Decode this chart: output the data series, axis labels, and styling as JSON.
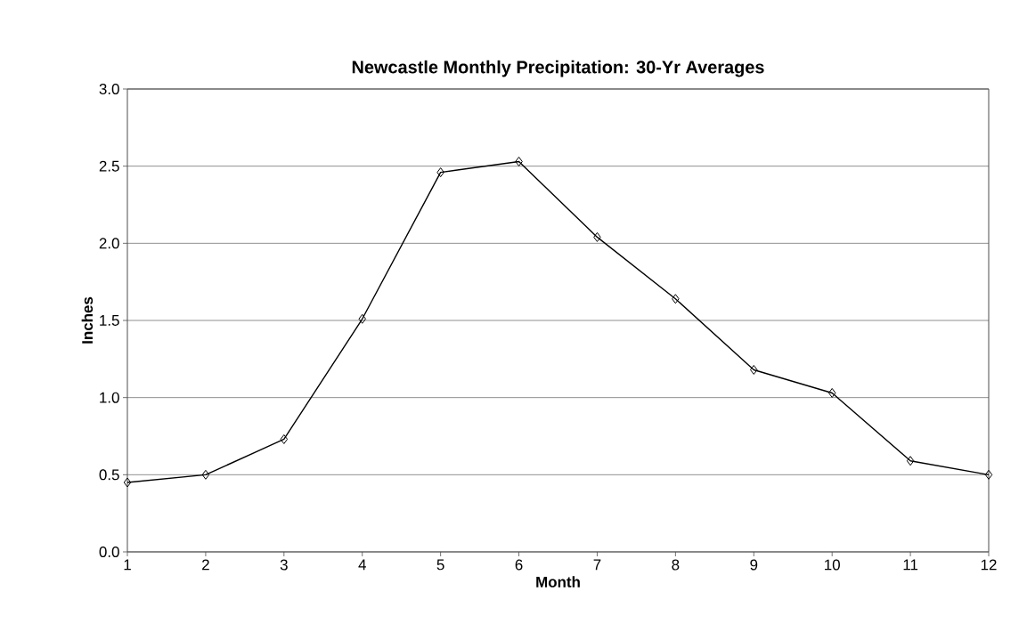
{
  "chart_data": {
    "type": "line",
    "title": "Newcastle Monthly Precipitation: 30-Yr Averages",
    "xlabel": "Month",
    "ylabel": "Inches",
    "x": [
      1,
      2,
      3,
      4,
      5,
      6,
      7,
      8,
      9,
      10,
      11,
      12
    ],
    "values": [
      0.45,
      0.5,
      0.73,
      1.51,
      2.46,
      2.53,
      2.04,
      1.64,
      1.18,
      1.03,
      0.59,
      0.5
    ],
    "color": "#000000",
    "xlim": [
      1,
      12
    ],
    "xticks": [
      1,
      2,
      3,
      4,
      5,
      6,
      7,
      8,
      9,
      10,
      11,
      12
    ],
    "ylim": [
      0,
      3
    ],
    "yticks": [
      {
        "value": 0,
        "label": "0.0"
      },
      {
        "value": 0.5,
        "label": "0.5"
      },
      {
        "value": 1,
        "label": "1.0"
      },
      {
        "value": 1.5,
        "label": "1.5"
      },
      {
        "value": 2,
        "label": "2.0"
      },
      {
        "value": 2.5,
        "label": "2.5"
      },
      {
        "value": 3,
        "label": "3.0"
      }
    ],
    "grid": "y",
    "marker": "diamond",
    "line_style": "solid"
  }
}
